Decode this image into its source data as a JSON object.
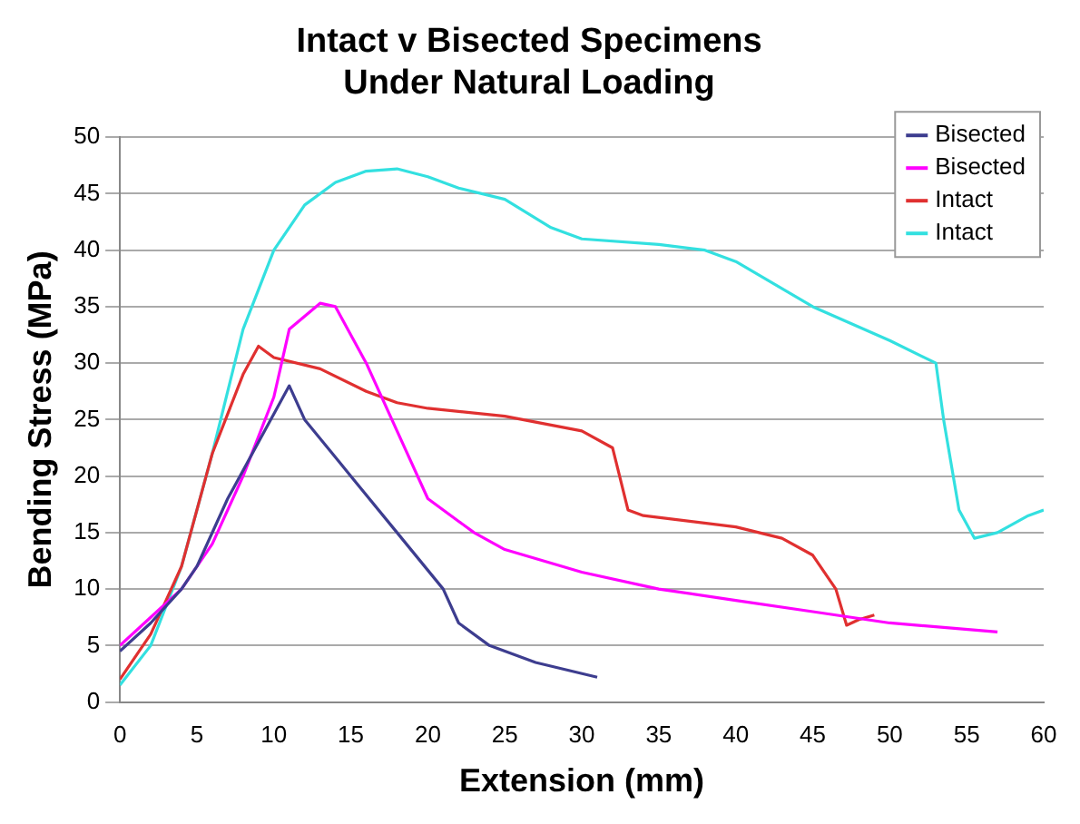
{
  "chart_data": {
    "type": "line",
    "title": [
      "Intact v Bisected Specimens",
      "Under Natural Loading"
    ],
    "xlabel": "Extension (mm)",
    "ylabel": "Bending Stress (MPa)",
    "xlim": [
      0,
      60
    ],
    "xticks": [
      0,
      5,
      10,
      15,
      20,
      25,
      30,
      35,
      40,
      45,
      50,
      55,
      60
    ],
    "ylim": [
      0,
      50
    ],
    "yticks": [
      0,
      5,
      10,
      15,
      20,
      25,
      30,
      35,
      40,
      45,
      50
    ],
    "grid": "y",
    "legend": "top right",
    "marker": "none",
    "line_style": "solid",
    "series": [
      {
        "name": "Bisected",
        "color": "#3d3d8f",
        "x": [
          0,
          2,
          4,
          5,
          7,
          9,
          11,
          12,
          15,
          18,
          21,
          22,
          24,
          27,
          31
        ],
        "values": [
          4.5,
          7,
          10,
          12,
          18,
          23,
          28,
          25,
          20,
          15,
          10,
          7,
          5,
          3.5,
          2.2
        ]
      },
      {
        "name": "Bisected",
        "color": "#ff00ff",
        "x": [
          0,
          2,
          4,
          6,
          8,
          10,
          11,
          13,
          14,
          16,
          18,
          20,
          22,
          23,
          25,
          30,
          35,
          40,
          45,
          50,
          57
        ],
        "values": [
          5,
          7.5,
          10,
          14,
          20,
          27,
          33,
          35.3,
          35,
          30,
          24,
          18,
          16,
          15,
          13.5,
          11.5,
          10,
          9,
          8,
          7,
          6.2
        ]
      },
      {
        "name": "Intact",
        "color": "#e03030",
        "x": [
          0,
          2,
          4,
          6,
          8,
          9,
          10,
          13,
          16,
          18,
          20,
          25,
          30,
          32,
          33,
          34,
          40,
          43,
          45,
          46.5,
          47.2,
          48,
          49
        ],
        "values": [
          2,
          6,
          12,
          22,
          29,
          31.5,
          30.5,
          29.5,
          27.5,
          26.5,
          26,
          25.3,
          24,
          22.5,
          17,
          16.5,
          15.5,
          14.5,
          13,
          10,
          6.8,
          7.3,
          7.7
        ]
      },
      {
        "name": "Intact",
        "color": "#33e0e0",
        "x": [
          0,
          2,
          4,
          6,
          8,
          10,
          12,
          14,
          16,
          18,
          20,
          22,
          25,
          28,
          30,
          35,
          38,
          40,
          45,
          50,
          53,
          53.5,
          54.5,
          55.5,
          57,
          59,
          60
        ],
        "values": [
          1.5,
          5,
          12,
          22,
          33,
          40,
          44,
          46,
          47,
          47.2,
          46.5,
          45.5,
          44.5,
          42,
          41,
          40.5,
          40,
          39,
          35,
          32,
          30,
          25,
          17,
          14.5,
          15,
          16.5,
          17
        ]
      }
    ]
  }
}
